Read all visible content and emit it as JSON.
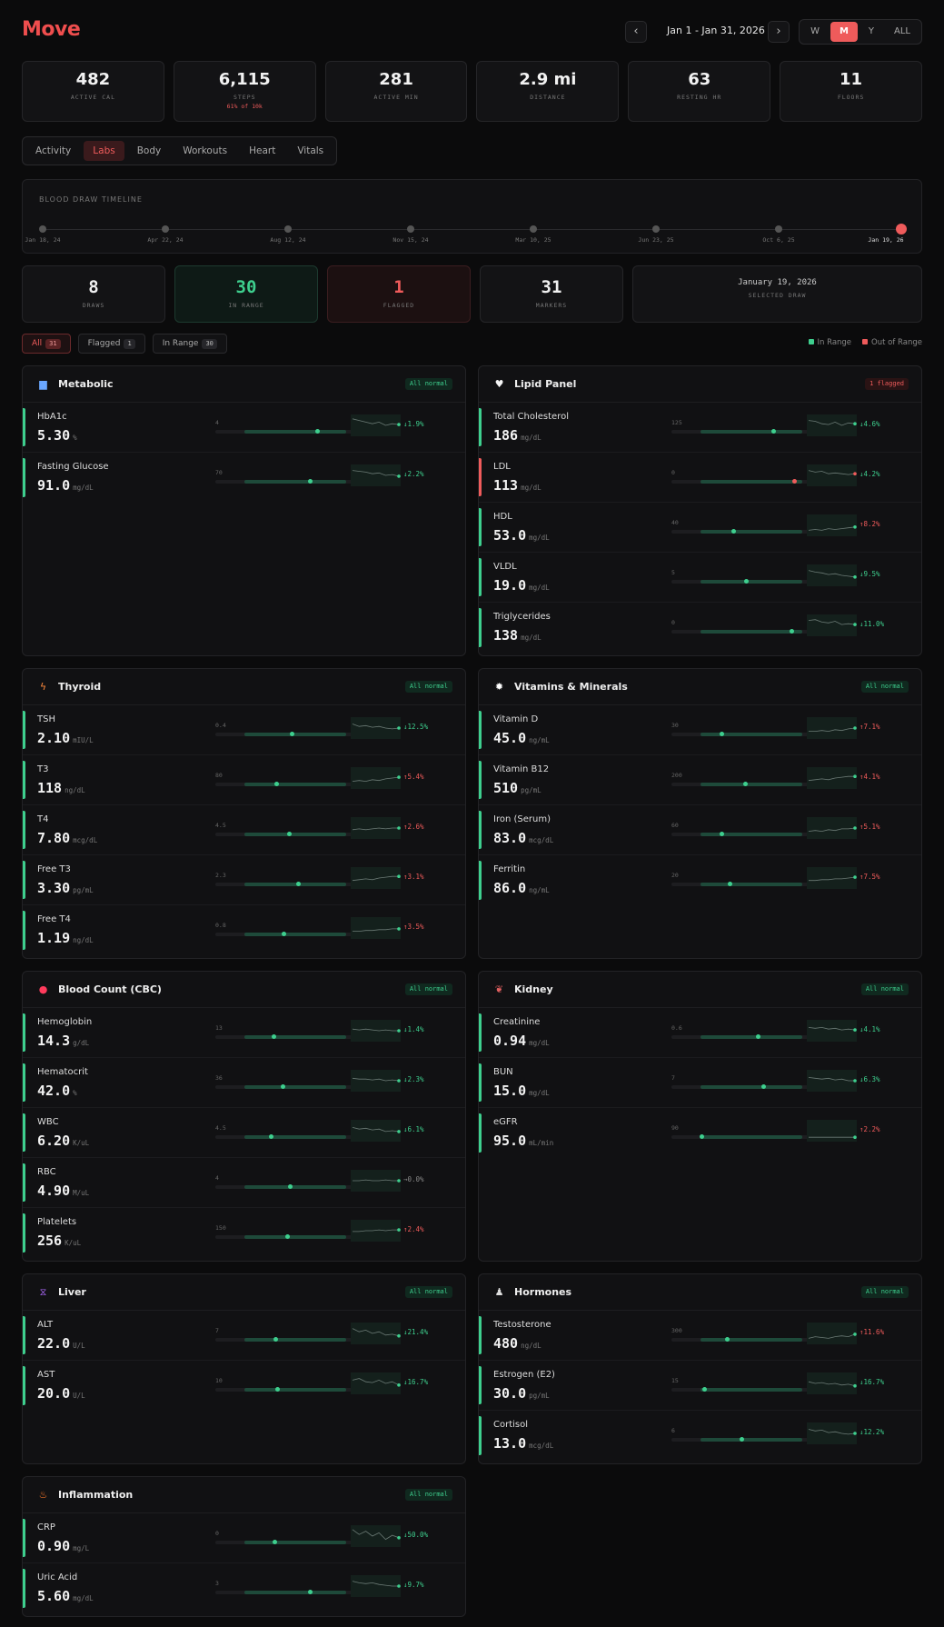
{
  "app": {
    "title": "Move",
    "date_range": "Jan 1 - Jan 31, 2026",
    "prev_icon": "chevron-left-icon",
    "next_icon": "chevron-right-icon",
    "periods": [
      "W",
      "M",
      "Y",
      "ALL"
    ],
    "active_period": "M"
  },
  "stats": [
    {
      "value": "482",
      "label": "ACTIVE CAL"
    },
    {
      "value": "6,115",
      "label": "STEPS",
      "sub": "61% of 10k"
    },
    {
      "value": "281",
      "label": "ACTIVE MIN"
    },
    {
      "value": "2.9 mi",
      "label": "DISTANCE"
    },
    {
      "value": "63",
      "label": "RESTING HR"
    },
    {
      "value": "11",
      "label": "FLOORS"
    }
  ],
  "tabs": [
    "Activity",
    "Labs",
    "Body",
    "Workouts",
    "Heart",
    "Vitals"
  ],
  "active_tab": "Labs",
  "timeline": {
    "title": "BLOOD DRAW TIMELINE",
    "draws": [
      "Jan 18, 24",
      "Apr 22, 24",
      "Aug 12, 24",
      "Nov 15, 24",
      "Mar 10, 25",
      "Jun 23, 25",
      "Oct 6, 25",
      "Jan 19, 26"
    ],
    "selected_index": 7
  },
  "summary": {
    "draws": {
      "value": "8",
      "label": "DRAWS"
    },
    "in_range": {
      "value": "30",
      "label": "IN RANGE"
    },
    "flagged": {
      "value": "1",
      "label": "FLAGGED"
    },
    "markers": {
      "value": "31",
      "label": "MARKERS"
    },
    "selected": {
      "date": "January 19, 2026",
      "label": "SELECTED DRAW"
    }
  },
  "filters": [
    {
      "label": "All",
      "count": "31",
      "active": true
    },
    {
      "label": "Flagged",
      "count": "1",
      "active": false
    },
    {
      "label": "In Range",
      "count": "30",
      "active": false
    }
  ],
  "legend": {
    "in_range": "In Range",
    "out_of_range": "Out of Range",
    "in_color": "#3ecf8e",
    "out_color": "#ef5b5b"
  },
  "panels": [
    {
      "title": "Metabolic",
      "icon": "chart-icon",
      "badge": "All normal",
      "flagged": false,
      "markers": [
        {
          "name": "HbA1c",
          "value": "5.30",
          "unit": "%",
          "lo": "4",
          "hi": "5.6",
          "pos": 0.72,
          "delta": "1.9%",
          "dir": "down",
          "trend": [
            0.9,
            0.8,
            0.7,
            0.6,
            0.7,
            0.5,
            0.6,
            0.55
          ],
          "flag": false
        },
        {
          "name": "Fasting Glucose",
          "value": "91.0",
          "unit": "mg/dL",
          "lo": "70",
          "hi": "100",
          "pos": 0.65,
          "delta": "2.2%",
          "dir": "down",
          "trend": [
            0.8,
            0.75,
            0.7,
            0.6,
            0.65,
            0.5,
            0.55,
            0.45
          ],
          "flag": false
        }
      ]
    },
    {
      "title": "Lipid Panel",
      "icon": "heart-icon",
      "badge": "1 flagged",
      "flagged": true,
      "markers": [
        {
          "name": "Total Cholesterol",
          "value": "186",
          "unit": "mg/dL",
          "lo": "125",
          "hi": "200",
          "pos": 0.72,
          "delta": "4.6%",
          "dir": "down",
          "trend": [
            0.8,
            0.75,
            0.6,
            0.55,
            0.7,
            0.5,
            0.65,
            0.6
          ],
          "flag": false
        },
        {
          "name": "LDL",
          "value": "113",
          "unit": "mg/dL",
          "lo": "0",
          "hi": "100",
          "pos": 0.92,
          "delta": "4.2%",
          "dir": "down",
          "trend": [
            0.8,
            0.7,
            0.75,
            0.6,
            0.65,
            0.6,
            0.55,
            0.6
          ],
          "flag": true
        },
        {
          "name": "HDL",
          "value": "53.0",
          "unit": "mg/dL",
          "lo": "40",
          "hi": "100",
          "pos": 0.33,
          "delta": "8.2%",
          "dir": "up",
          "trend": [
            0.2,
            0.25,
            0.2,
            0.3,
            0.25,
            0.3,
            0.35,
            0.4
          ],
          "flag": false
        },
        {
          "name": "VLDL",
          "value": "19.0",
          "unit": "mg/dL",
          "lo": "5",
          "hi": "40",
          "pos": 0.45,
          "delta": "9.5%",
          "dir": "down",
          "trend": [
            0.8,
            0.7,
            0.65,
            0.55,
            0.6,
            0.5,
            0.45,
            0.4
          ],
          "flag": false
        },
        {
          "name": "Triglycerides",
          "value": "138",
          "unit": "mg/dL",
          "lo": "0",
          "hi": "150",
          "pos": 0.9,
          "delta": "11.0%",
          "dir": "down",
          "trend": [
            0.8,
            0.85,
            0.7,
            0.65,
            0.75,
            0.55,
            0.6,
            0.55
          ],
          "flag": false
        }
      ]
    },
    {
      "title": "Thyroid",
      "icon": "bolt-icon",
      "badge": "All normal",
      "flagged": false,
      "markers": [
        {
          "name": "TSH",
          "value": "2.10",
          "unit": "mIU/L",
          "lo": "0.4",
          "hi": "4",
          "pos": 0.47,
          "delta": "12.5%",
          "dir": "down",
          "trend": [
            0.75,
            0.6,
            0.65,
            0.55,
            0.6,
            0.5,
            0.45,
            0.5
          ],
          "flag": false
        },
        {
          "name": "T3",
          "value": "118",
          "unit": "ng/dL",
          "lo": "80",
          "hi": "200",
          "pos": 0.32,
          "delta": "5.4%",
          "dir": "up",
          "trend": [
            0.3,
            0.35,
            0.3,
            0.4,
            0.35,
            0.45,
            0.5,
            0.55
          ],
          "flag": false
        },
        {
          "name": "T4",
          "value": "7.80",
          "unit": "mcg/dL",
          "lo": "4.5",
          "hi": "12",
          "pos": 0.44,
          "delta": "2.6%",
          "dir": "up",
          "trend": [
            0.4,
            0.45,
            0.4,
            0.45,
            0.5,
            0.45,
            0.5,
            0.5
          ],
          "flag": false
        },
        {
          "name": "Free T3",
          "value": "3.30",
          "unit": "pg/mL",
          "lo": "2.3",
          "hi": "4.2",
          "pos": 0.53,
          "delta": "3.1%",
          "dir": "up",
          "trend": [
            0.35,
            0.4,
            0.45,
            0.4,
            0.5,
            0.55,
            0.6,
            0.6
          ],
          "flag": false
        },
        {
          "name": "Free T4",
          "value": "1.19",
          "unit": "ng/dL",
          "lo": "0.8",
          "hi": "1.8",
          "pos": 0.39,
          "delta": "3.5%",
          "dir": "up",
          "trend": [
            0.3,
            0.3,
            0.35,
            0.35,
            0.4,
            0.4,
            0.45,
            0.45
          ],
          "flag": false
        }
      ]
    },
    {
      "title": "Vitamins & Minerals",
      "icon": "sun-icon",
      "badge": "All normal",
      "flagged": false,
      "markers": [
        {
          "name": "Vitamin D",
          "value": "45.0",
          "unit": "ng/mL",
          "lo": "30",
          "hi": "100",
          "pos": 0.21,
          "delta": "7.1%",
          "dir": "up",
          "trend": [
            0.3,
            0.3,
            0.35,
            0.3,
            0.4,
            0.35,
            0.45,
            0.5
          ],
          "flag": false
        },
        {
          "name": "Vitamin B12",
          "value": "510",
          "unit": "pg/mL",
          "lo": "200",
          "hi": "900",
          "pos": 0.44,
          "delta": "4.1%",
          "dir": "up",
          "trend": [
            0.35,
            0.4,
            0.45,
            0.4,
            0.5,
            0.55,
            0.6,
            0.6
          ],
          "flag": false
        },
        {
          "name": "Iron (Serum)",
          "value": "83.0",
          "unit": "mcg/dL",
          "lo": "60",
          "hi": "170",
          "pos": 0.21,
          "delta": "5.1%",
          "dir": "up",
          "trend": [
            0.3,
            0.35,
            0.3,
            0.4,
            0.35,
            0.45,
            0.45,
            0.5
          ],
          "flag": false
        },
        {
          "name": "Ferritin",
          "value": "86.0",
          "unit": "ng/mL",
          "lo": "20",
          "hi": "250",
          "pos": 0.29,
          "delta": "7.5%",
          "dir": "up",
          "trend": [
            0.35,
            0.35,
            0.4,
            0.4,
            0.45,
            0.45,
            0.5,
            0.55
          ],
          "flag": false
        }
      ]
    },
    {
      "title": "Blood Count (CBC)",
      "icon": "drop-icon",
      "badge": "All normal",
      "flagged": false,
      "markers": [
        {
          "name": "Hemoglobin",
          "value": "14.3",
          "unit": "g/dL",
          "lo": "13",
          "hi": "17.5",
          "pos": 0.29,
          "delta": "1.4%",
          "dir": "down",
          "trend": [
            0.6,
            0.55,
            0.6,
            0.55,
            0.5,
            0.55,
            0.5,
            0.5
          ],
          "flag": false
        },
        {
          "name": "Hematocrit",
          "value": "42.0",
          "unit": "%",
          "lo": "36",
          "hi": "52",
          "pos": 0.38,
          "delta": "2.3%",
          "dir": "down",
          "trend": [
            0.65,
            0.6,
            0.6,
            0.55,
            0.6,
            0.5,
            0.55,
            0.5
          ],
          "flag": false
        },
        {
          "name": "WBC",
          "value": "6.20",
          "unit": "K/uL",
          "lo": "4.5",
          "hi": "11",
          "pos": 0.26,
          "delta": "6.1%",
          "dir": "down",
          "trend": [
            0.7,
            0.6,
            0.65,
            0.55,
            0.6,
            0.45,
            0.5,
            0.45
          ],
          "flag": false
        },
        {
          "name": "RBC",
          "value": "4.90",
          "unit": "M/uL",
          "lo": "4",
          "hi": "6",
          "pos": 0.45,
          "delta": "0.0%",
          "dir": "flat",
          "trend": [
            0.5,
            0.5,
            0.55,
            0.5,
            0.5,
            0.55,
            0.5,
            0.5
          ],
          "flag": false
        },
        {
          "name": "Platelets",
          "value": "256",
          "unit": "K/uL",
          "lo": "150",
          "hi": "400",
          "pos": 0.42,
          "delta": "2.4%",
          "dir": "up",
          "trend": [
            0.45,
            0.45,
            0.5,
            0.5,
            0.55,
            0.5,
            0.55,
            0.55
          ],
          "flag": false
        }
      ]
    },
    {
      "title": "Kidney",
      "icon": "kidney-icon",
      "badge": "All normal",
      "flagged": false,
      "markers": [
        {
          "name": "Creatinine",
          "value": "0.94",
          "unit": "mg/dL",
          "lo": "0.6",
          "hi": "1.2",
          "pos": 0.57,
          "delta": "4.1%",
          "dir": "down",
          "trend": [
            0.7,
            0.65,
            0.7,
            0.6,
            0.65,
            0.55,
            0.6,
            0.55
          ],
          "flag": false
        },
        {
          "name": "BUN",
          "value": "15.0",
          "unit": "mg/dL",
          "lo": "7",
          "hi": "20",
          "pos": 0.62,
          "delta": "6.3%",
          "dir": "down",
          "trend": [
            0.7,
            0.65,
            0.6,
            0.65,
            0.55,
            0.6,
            0.5,
            0.5
          ],
          "flag": false
        },
        {
          "name": "eGFR",
          "value": "95.0",
          "unit": "mL/min",
          "lo": "90",
          "hi": "999",
          "pos": 0.01,
          "delta": "2.2%",
          "dir": "up",
          "trend": [
            0.1,
            0.1,
            0.1,
            0.1,
            0.1,
            0.1,
            0.1,
            0.1
          ],
          "flag": false
        }
      ]
    },
    {
      "title": "Liver",
      "icon": "dna-icon",
      "badge": "All normal",
      "flagged": false,
      "markers": [
        {
          "name": "ALT",
          "value": "22.0",
          "unit": "U/L",
          "lo": "7",
          "hi": "56",
          "pos": 0.31,
          "delta": "21.4%",
          "dir": "down",
          "trend": [
            0.8,
            0.6,
            0.7,
            0.5,
            0.6,
            0.4,
            0.45,
            0.35
          ],
          "flag": false
        },
        {
          "name": "AST",
          "value": "20.0",
          "unit": "U/L",
          "lo": "10",
          "hi": "40",
          "pos": 0.33,
          "delta": "16.7%",
          "dir": "down",
          "trend": [
            0.7,
            0.8,
            0.6,
            0.55,
            0.7,
            0.5,
            0.6,
            0.4
          ],
          "flag": false
        }
      ]
    },
    {
      "title": "Hormones",
      "icon": "people-icon",
      "badge": "All normal",
      "flagged": false,
      "markers": [
        {
          "name": "Testosterone",
          "value": "480",
          "unit": "ng/dL",
          "lo": "300",
          "hi": "1000",
          "pos": 0.26,
          "delta": "11.6%",
          "dir": "up",
          "trend": [
            0.2,
            0.3,
            0.25,
            0.2,
            0.3,
            0.35,
            0.3,
            0.45
          ],
          "flag": false
        },
        {
          "name": "Estrogen (E2)",
          "value": "30.0",
          "unit": "pg/mL",
          "lo": "15",
          "hi": "350",
          "pos": 0.04,
          "delta": "16.7%",
          "dir": "down",
          "trend": [
            0.6,
            0.5,
            0.55,
            0.45,
            0.5,
            0.4,
            0.45,
            0.35
          ],
          "flag": false
        },
        {
          "name": "Cortisol",
          "value": "13.0",
          "unit": "mcg/dL",
          "lo": "6",
          "hi": "23",
          "pos": 0.41,
          "delta": "12.2%",
          "dir": "down",
          "trend": [
            0.75,
            0.65,
            0.7,
            0.55,
            0.6,
            0.5,
            0.45,
            0.5
          ],
          "flag": false
        }
      ]
    },
    {
      "title": "Inflammation",
      "icon": "flame-icon",
      "badge": "All normal",
      "flagged": false,
      "markers": [
        {
          "name": "CRP",
          "value": "0.90",
          "unit": "mg/L",
          "lo": "0",
          "hi": "3",
          "pos": 0.3,
          "delta": "50.0%",
          "dir": "down",
          "trend": [
            0.9,
            0.6,
            0.8,
            0.5,
            0.7,
            0.3,
            0.55,
            0.4
          ],
          "flag": false
        },
        {
          "name": "Uric Acid",
          "value": "5.60",
          "unit": "mg/dL",
          "lo": "3",
          "hi": "7",
          "pos": 0.65,
          "delta": "9.7%",
          "dir": "down",
          "trend": [
            0.8,
            0.7,
            0.65,
            0.7,
            0.6,
            0.55,
            0.5,
            0.5
          ],
          "flag": false
        }
      ]
    }
  ]
}
